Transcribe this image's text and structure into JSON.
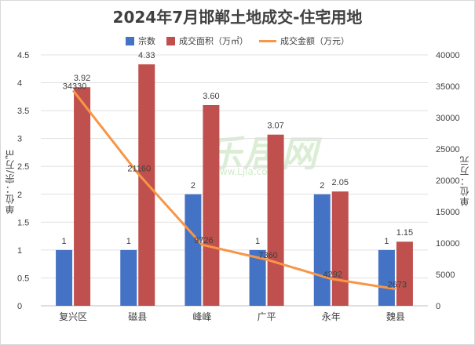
{
  "chart_data": {
    "type": "bar+line",
    "title": "2024年7月邯郸土地成交-住宅用地",
    "categories": [
      "复兴区",
      "磁县",
      "峰峰",
      "广平",
      "永年",
      "魏县"
    ],
    "series": [
      {
        "name": "宗数",
        "type": "bar",
        "axis": "left",
        "color": "#4472c4",
        "values": [
          1,
          1,
          2,
          1,
          2,
          1
        ]
      },
      {
        "name": "成交面积（万㎡）",
        "type": "bar",
        "axis": "left",
        "color": "#c0504d",
        "values": [
          3.92,
          4.33,
          3.6,
          3.07,
          2.05,
          1.15
        ]
      },
      {
        "name": "成交金额（万元）",
        "type": "line",
        "axis": "right",
        "color": "#f79646",
        "values": [
          34330,
          21160,
          9726,
          7360,
          4292,
          2673
        ]
      }
    ],
    "y_left": {
      "label": "单位：宗/万㎡",
      "ylim": [
        0,
        4.5
      ],
      "ticks": [
        "0",
        "0.5",
        "1",
        "1.5",
        "2",
        "2.5",
        "3",
        "3.5",
        "4",
        "4.5"
      ]
    },
    "y_right": {
      "label": "单位：万元",
      "ylim": [
        0,
        40000
      ],
      "ticks": [
        "0",
        "5000",
        "10000",
        "15000",
        "20000",
        "25000",
        "30000",
        "35000",
        "40000"
      ]
    },
    "legend_position": "top"
  },
  "watermark": {
    "text": "乐居网",
    "url": "www.Ljia.com"
  }
}
